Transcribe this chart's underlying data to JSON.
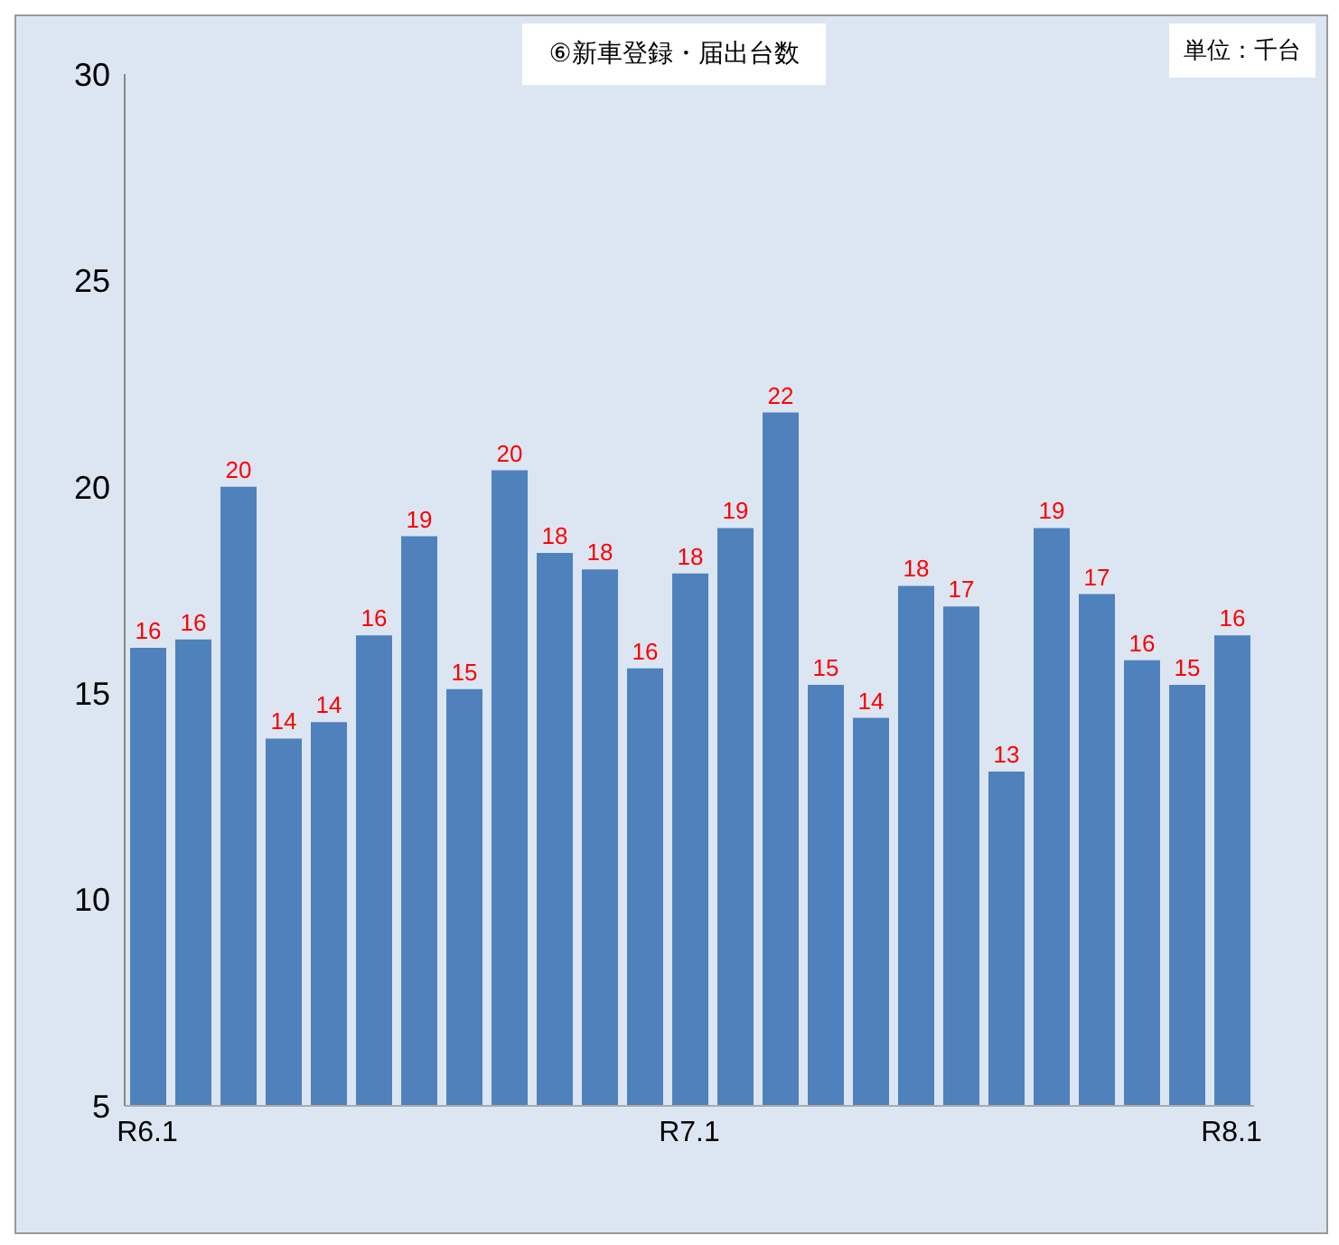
{
  "chart_data": {
    "type": "bar",
    "title": "⑥新車登録・届出台数",
    "annotations": [
      "単位：千台"
    ],
    "categories": [
      "R6.1",
      null,
      null,
      null,
      null,
      null,
      null,
      null,
      null,
      null,
      null,
      null,
      "R7.1",
      null,
      null,
      null,
      null,
      null,
      null,
      null,
      null,
      null,
      null,
      null,
      "R8.1"
    ],
    "values": [
      16.1,
      16.3,
      20.0,
      13.9,
      14.3,
      16.4,
      18.8,
      15.1,
      20.4,
      18.4,
      18.0,
      15.6,
      17.9,
      19.0,
      21.8,
      15.2,
      14.4,
      17.6,
      17.1,
      13.1,
      19.0,
      17.4,
      15.8,
      15.2,
      16.4
    ],
    "value_labels": [
      "16",
      "16",
      "20",
      "14",
      "14",
      "16",
      "19",
      "15",
      "20",
      "18",
      "18",
      "16",
      "18",
      "19",
      "22",
      "15",
      "14",
      "18",
      "17",
      "13",
      "19",
      "17",
      "16",
      "15",
      "16"
    ],
    "color": "#4f81bd",
    "ylim": [
      5,
      30
    ],
    "yticks": [
      5,
      10,
      15,
      20,
      25,
      30
    ],
    "grid": false,
    "legend": false
  }
}
